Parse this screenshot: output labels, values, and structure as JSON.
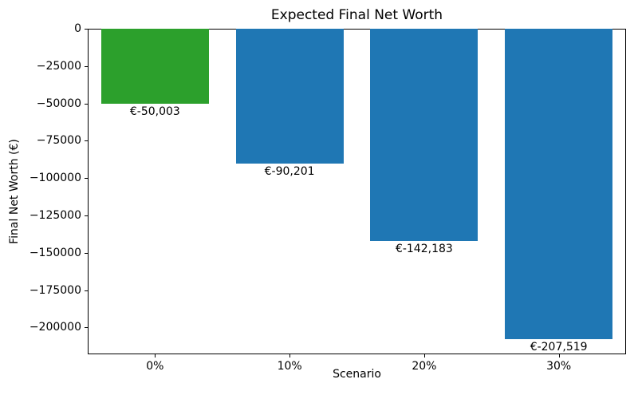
{
  "chart_data": {
    "type": "bar",
    "title": "Expected Final Net Worth",
    "xlabel": "Scenario",
    "ylabel": "Final Net Worth (€)",
    "categories": [
      "0%",
      "10%",
      "20%",
      "30%"
    ],
    "values": [
      -50003,
      -90201,
      -142183,
      -207519
    ],
    "bar_labels": [
      "€-50,003",
      "€-90,201",
      "€-142,183",
      "€-207,519"
    ],
    "bar_colors": [
      "#2ca02c",
      "#1f77b4",
      "#1f77b4",
      "#1f77b4"
    ],
    "ylim": [
      -217895,
      0
    ],
    "yticks": [
      0,
      -25000,
      -50000,
      -75000,
      -100000,
      -125000,
      -150000,
      -175000,
      -200000
    ],
    "ytick_labels": [
      "0",
      "−25000",
      "−50000",
      "−75000",
      "−100000",
      "−125000",
      "−150000",
      "−175000",
      "−200000"
    ],
    "bar_width_fraction": 0.8,
    "grid": false,
    "legend": null,
    "background_color": "#ffffff",
    "spine_color": "#000000"
  }
}
